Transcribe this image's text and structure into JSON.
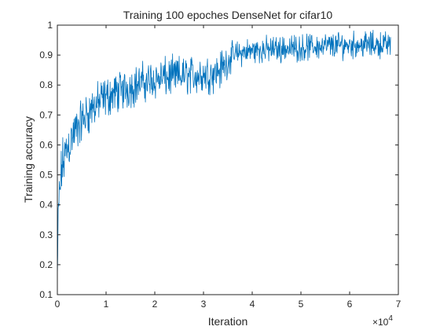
{
  "chart_data": {
    "type": "line",
    "title": "Training 100 epoches DenseNet for cifar10",
    "xlabel": "Iteration",
    "ylabel": "Training accuracy",
    "x_multiplier_base": "×10",
    "x_multiplier_exp": "4",
    "xlim": [
      0,
      7
    ],
    "ylim": [
      0.1,
      1
    ],
    "x_ticks": [
      0,
      1,
      2,
      3,
      4,
      5,
      6,
      7
    ],
    "x_tick_labels": [
      "0",
      "1",
      "2",
      "3",
      "4",
      "5",
      "6",
      "7"
    ],
    "y_ticks": [
      0.1,
      0.2,
      0.3,
      0.4,
      0.5,
      0.6,
      0.7,
      0.8,
      0.9,
      1
    ],
    "y_tick_labels": [
      "0.1",
      "0.2",
      "0.3",
      "0.4",
      "0.5",
      "0.6",
      "0.7",
      "0.8",
      "0.9",
      "1"
    ],
    "grid": false,
    "line_color": "#0072BD",
    "series": [
      {
        "name": "Training accuracy",
        "x_end": 6.84,
        "points": 860,
        "trend": [
          [
            0.0,
            0.16
          ],
          [
            0.02,
            0.35
          ],
          [
            0.05,
            0.45
          ],
          [
            0.1,
            0.53
          ],
          [
            0.2,
            0.59
          ],
          [
            0.35,
            0.64
          ],
          [
            0.5,
            0.68
          ],
          [
            0.7,
            0.72
          ],
          [
            1.0,
            0.76
          ],
          [
            1.3,
            0.78
          ],
          [
            1.6,
            0.8
          ],
          [
            2.0,
            0.82
          ],
          [
            2.5,
            0.83
          ],
          [
            3.0,
            0.835
          ],
          [
            3.3,
            0.845
          ],
          [
            3.45,
            0.87
          ],
          [
            3.6,
            0.9
          ],
          [
            4.0,
            0.915
          ],
          [
            5.0,
            0.925
          ],
          [
            6.0,
            0.935
          ],
          [
            6.84,
            0.935
          ]
        ],
        "noise_amplitude": [
          [
            0.0,
            0.1
          ],
          [
            0.3,
            0.08
          ],
          [
            1.0,
            0.07
          ],
          [
            3.4,
            0.065
          ],
          [
            3.6,
            0.045
          ],
          [
            6.84,
            0.045
          ]
        ],
        "y_max": 1.0,
        "y_min": 0.14
      }
    ]
  }
}
